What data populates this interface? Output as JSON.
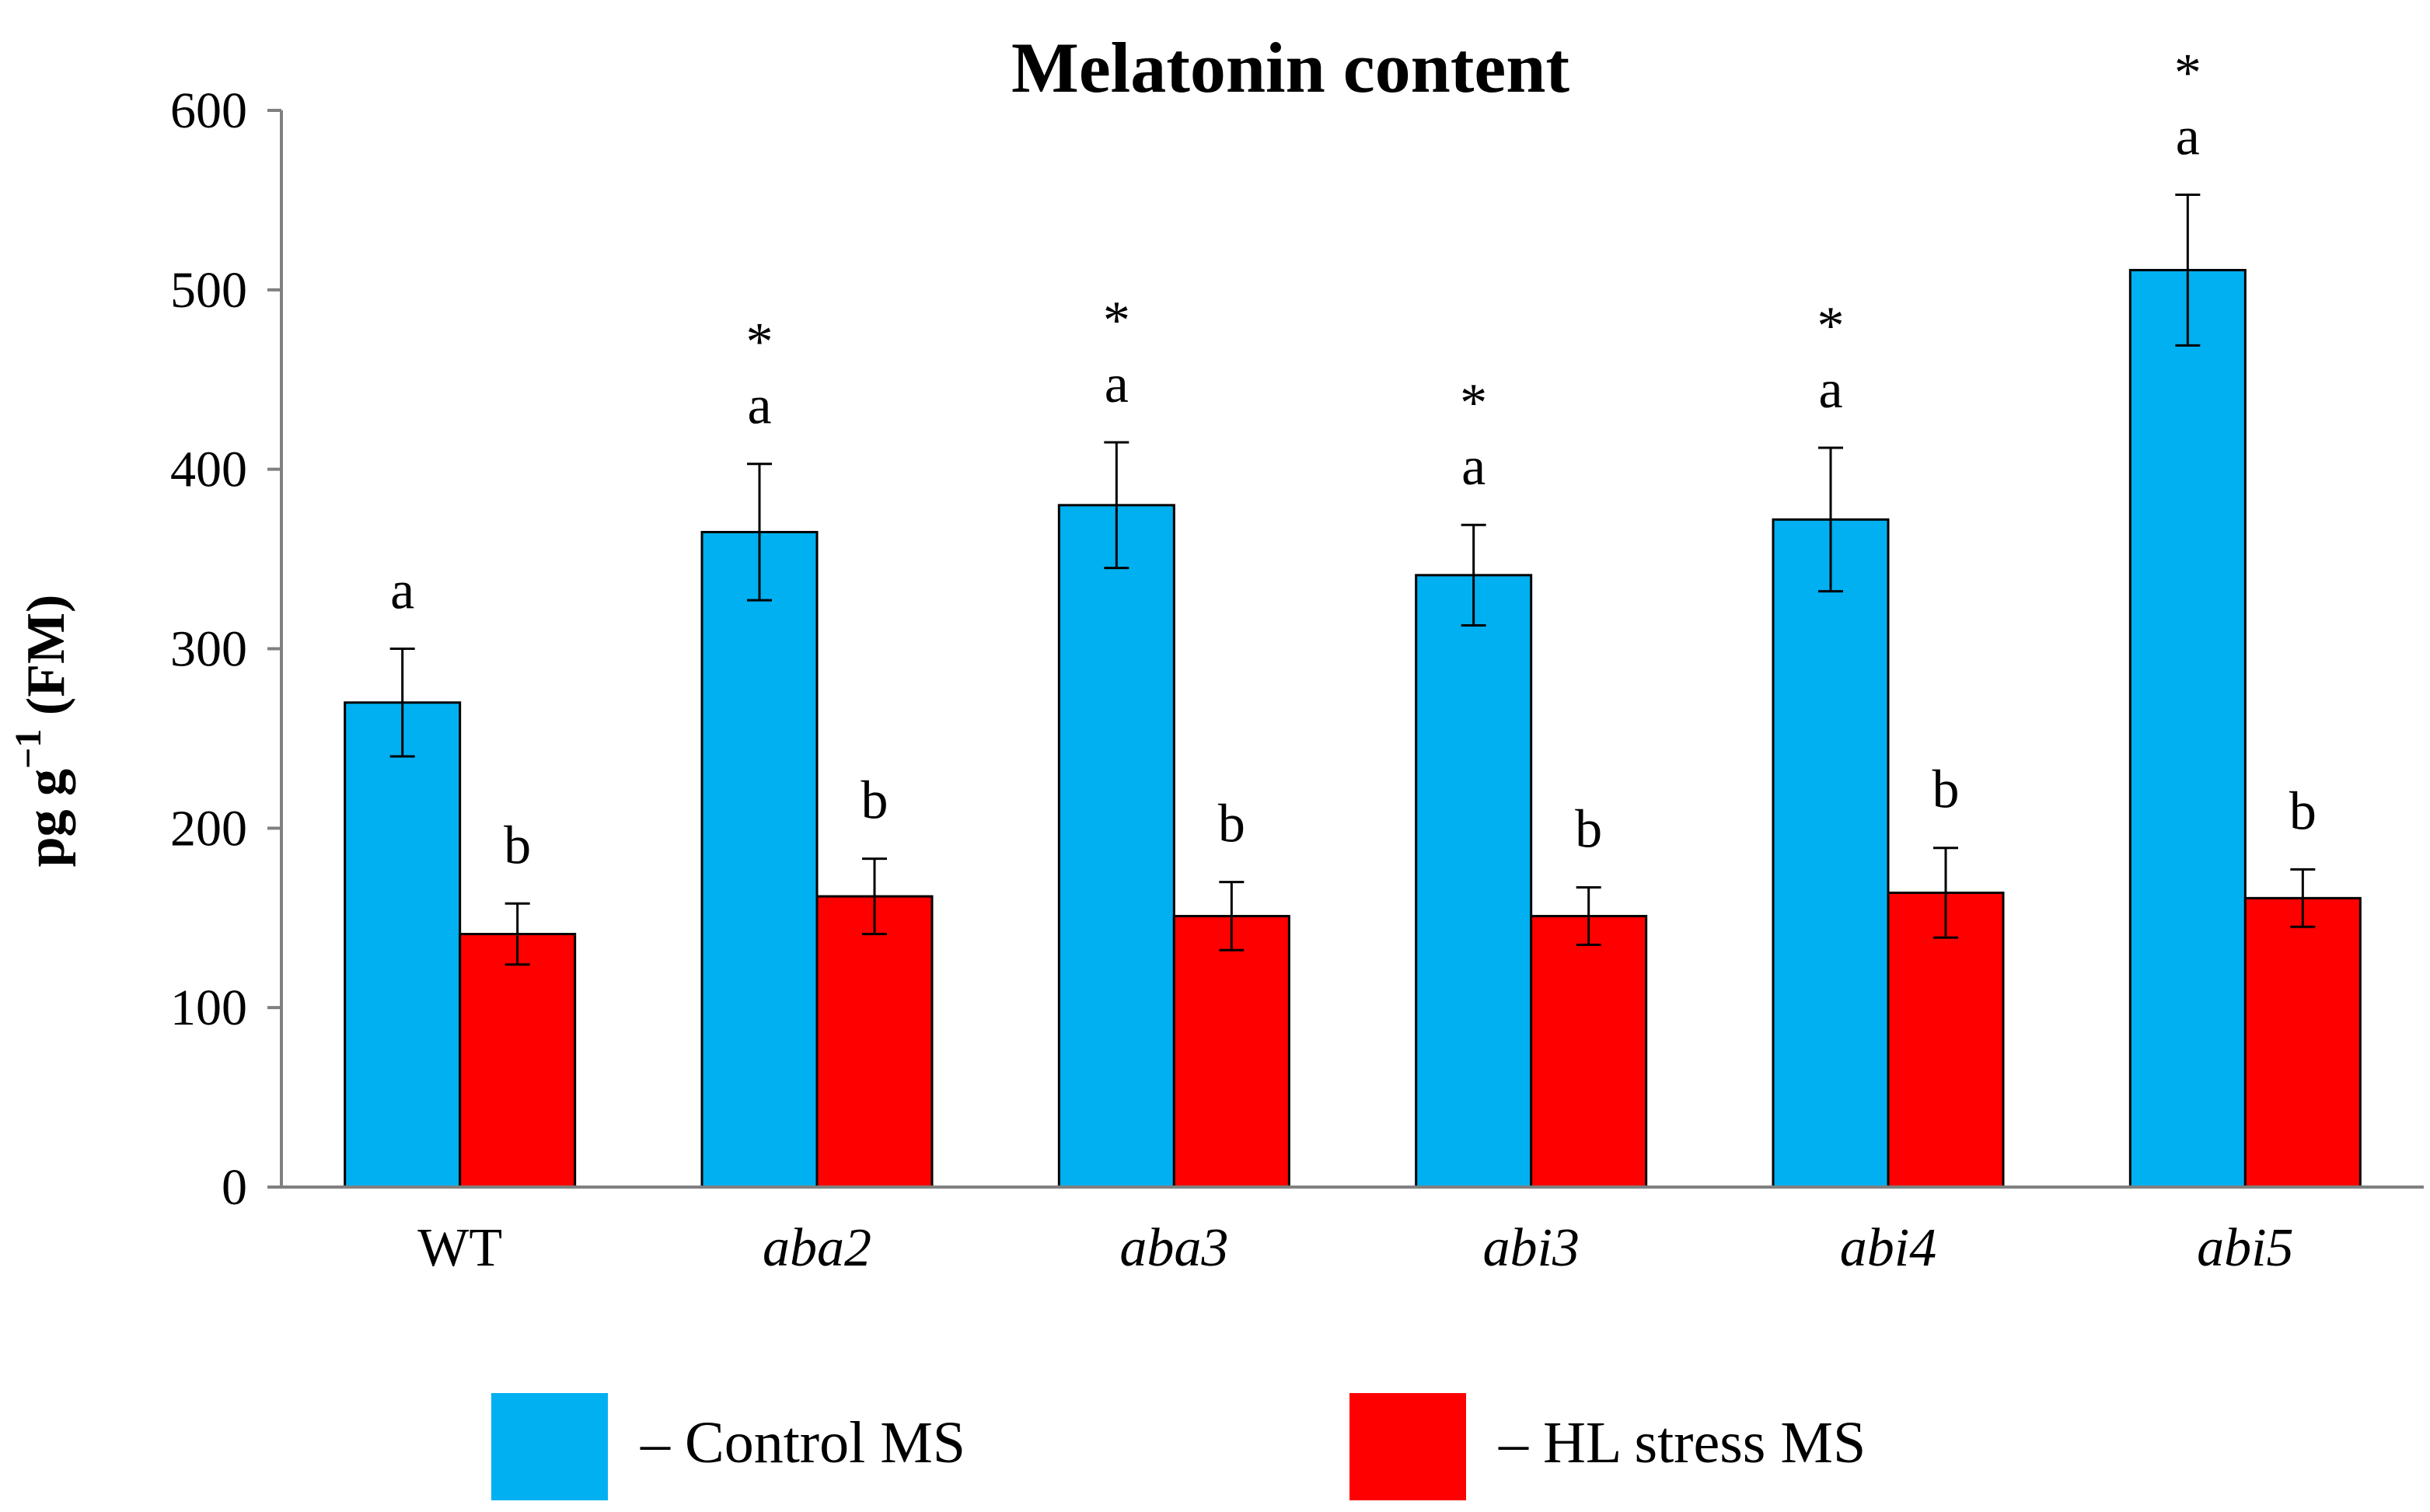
{
  "chart_data": {
    "type": "bar",
    "title": "Melatonin content",
    "ylabel_main": "pg g",
    "ylabel_sup": "−1",
    "ylabel_tail": " (FM)",
    "ylim": [
      0,
      600
    ],
    "yticks": [
      0,
      100,
      200,
      300,
      400,
      500,
      600
    ],
    "grid": false,
    "legend_position": "bottom",
    "categories": [
      "WT",
      "aba2",
      "aba3",
      "abi3",
      "abi4",
      "abi5"
    ],
    "category_italic": [
      false,
      true,
      true,
      true,
      true,
      true
    ],
    "series": [
      {
        "name": "– Control MS",
        "color": "#00b0f0",
        "values": [
          270,
          365,
          380,
          341,
          372,
          511
        ],
        "errors": [
          30,
          38,
          35,
          28,
          40,
          42
        ],
        "letters": [
          "a",
          "a",
          "a",
          "a",
          "a",
          "a"
        ],
        "stars": [
          "",
          "*",
          "*",
          "*",
          "*",
          "*"
        ]
      },
      {
        "name": "– HL stress MS",
        "color": "#ff0000",
        "values": [
          141,
          162,
          151,
          151,
          164,
          161
        ],
        "errors": [
          17,
          21,
          19,
          16,
          25,
          16
        ],
        "letters": [
          "b",
          "b",
          "b",
          "b",
          "b",
          "b"
        ],
        "stars": [
          "",
          "",
          "",
          "",
          "",
          ""
        ]
      }
    ]
  }
}
